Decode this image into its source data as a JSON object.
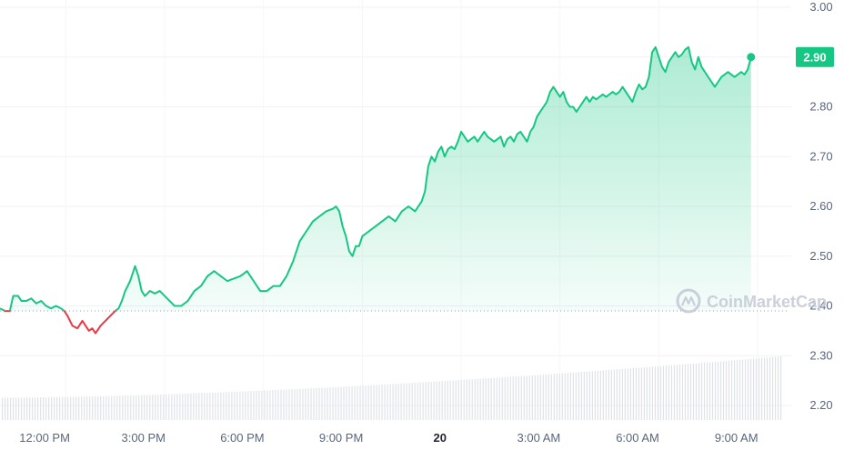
{
  "chart_data": {
    "type": "area",
    "title": "",
    "xlabel": "",
    "ylabel": "",
    "ylim": [
      2.2,
      3.0
    ],
    "y_ticks": [
      "3.00",
      "2.90",
      "2.80",
      "2.70",
      "2.60",
      "2.50",
      "2.40",
      "2.30",
      "2.20"
    ],
    "x_ticks": [
      {
        "label": "12:00 PM",
        "x": 0.5,
        "bold": false
      },
      {
        "label": "3:00 PM",
        "x": 3.5,
        "bold": false
      },
      {
        "label": "6:00 PM",
        "x": 6.5,
        "bold": false
      },
      {
        "label": "9:00 PM",
        "x": 9.5,
        "bold": false
      },
      {
        "label": "20",
        "x": 12.5,
        "bold": true
      },
      {
        "label": "3:00 AM",
        "x": 15.5,
        "bold": false
      },
      {
        "label": "6:00 AM",
        "x": 18.5,
        "bold": false
      },
      {
        "label": "9:00 AM",
        "x": 21.5,
        "bold": false
      }
    ],
    "x_range": [
      0,
      23.8
    ],
    "open_price": 2.39,
    "current_price_label": "2.90",
    "rising_color": "#16c784",
    "falling_color": "#ea3943",
    "grid": true,
    "series": [
      {
        "values": [
          [
            0.0,
            2.395
          ],
          [
            0.15,
            2.39
          ],
          [
            0.3,
            2.39
          ],
          [
            0.4,
            2.42
          ],
          [
            0.55,
            2.42
          ],
          [
            0.65,
            2.41
          ],
          [
            0.8,
            2.41
          ],
          [
            0.95,
            2.415
          ],
          [
            1.1,
            2.405
          ],
          [
            1.25,
            2.41
          ],
          [
            1.4,
            2.4
          ],
          [
            1.55,
            2.395
          ],
          [
            1.7,
            2.4
          ],
          [
            1.85,
            2.395
          ],
          [
            1.95,
            2.39
          ],
          [
            2.05,
            2.38
          ],
          [
            2.2,
            2.36
          ],
          [
            2.35,
            2.355
          ],
          [
            2.5,
            2.37
          ],
          [
            2.6,
            2.36
          ],
          [
            2.7,
            2.35
          ],
          [
            2.8,
            2.355
          ],
          [
            2.9,
            2.345
          ],
          [
            3.05,
            2.36
          ],
          [
            3.2,
            2.37
          ],
          [
            3.35,
            2.38
          ],
          [
            3.5,
            2.39
          ],
          [
            3.6,
            2.395
          ],
          [
            3.7,
            2.41
          ],
          [
            3.8,
            2.43
          ],
          [
            3.95,
            2.45
          ],
          [
            4.1,
            2.48
          ],
          [
            4.2,
            2.46
          ],
          [
            4.3,
            2.43
          ],
          [
            4.4,
            2.42
          ],
          [
            4.55,
            2.43
          ],
          [
            4.7,
            2.425
          ],
          [
            4.85,
            2.43
          ],
          [
            5.0,
            2.42
          ],
          [
            5.15,
            2.41
          ],
          [
            5.3,
            2.4
          ],
          [
            5.5,
            2.4
          ],
          [
            5.7,
            2.41
          ],
          [
            5.9,
            2.43
          ],
          [
            6.1,
            2.44
          ],
          [
            6.3,
            2.46
          ],
          [
            6.5,
            2.47
          ],
          [
            6.7,
            2.46
          ],
          [
            6.9,
            2.45
          ],
          [
            7.1,
            2.455
          ],
          [
            7.3,
            2.46
          ],
          [
            7.5,
            2.47
          ],
          [
            7.7,
            2.45
          ],
          [
            7.9,
            2.43
          ],
          [
            8.1,
            2.43
          ],
          [
            8.3,
            2.44
          ],
          [
            8.5,
            2.44
          ],
          [
            8.7,
            2.46
          ],
          [
            8.9,
            2.49
          ],
          [
            9.1,
            2.53
          ],
          [
            9.3,
            2.55
          ],
          [
            9.5,
            2.57
          ],
          [
            9.7,
            2.58
          ],
          [
            9.9,
            2.59
          ],
          [
            10.1,
            2.595
          ],
          [
            10.2,
            2.6
          ],
          [
            10.3,
            2.59
          ],
          [
            10.4,
            2.56
          ],
          [
            10.5,
            2.54
          ],
          [
            10.6,
            2.51
          ],
          [
            10.7,
            2.5
          ],
          [
            10.8,
            2.52
          ],
          [
            10.9,
            2.52
          ],
          [
            11.0,
            2.54
          ],
          [
            11.2,
            2.55
          ],
          [
            11.4,
            2.56
          ],
          [
            11.6,
            2.57
          ],
          [
            11.8,
            2.58
          ],
          [
            12.0,
            2.57
          ],
          [
            12.2,
            2.59
          ],
          [
            12.4,
            2.6
          ],
          [
            12.6,
            2.59
          ],
          [
            12.8,
            2.61
          ],
          [
            12.9,
            2.63
          ],
          [
            13.0,
            2.68
          ],
          [
            13.1,
            2.7
          ],
          [
            13.2,
            2.69
          ],
          [
            13.3,
            2.71
          ],
          [
            13.4,
            2.72
          ],
          [
            13.5,
            2.7
          ],
          [
            13.6,
            2.715
          ],
          [
            13.7,
            2.72
          ],
          [
            13.8,
            2.715
          ],
          [
            13.9,
            2.73
          ],
          [
            14.0,
            2.75
          ],
          [
            14.1,
            2.74
          ],
          [
            14.2,
            2.73
          ],
          [
            14.3,
            2.735
          ],
          [
            14.4,
            2.74
          ],
          [
            14.5,
            2.73
          ],
          [
            14.6,
            2.74
          ],
          [
            14.7,
            2.75
          ],
          [
            14.8,
            2.74
          ],
          [
            14.9,
            2.735
          ],
          [
            15.0,
            2.73
          ],
          [
            15.1,
            2.735
          ],
          [
            15.2,
            2.74
          ],
          [
            15.3,
            2.72
          ],
          [
            15.4,
            2.735
          ],
          [
            15.5,
            2.74
          ],
          [
            15.6,
            2.73
          ],
          [
            15.7,
            2.745
          ],
          [
            15.8,
            2.75
          ],
          [
            15.9,
            2.74
          ],
          [
            16.0,
            2.73
          ],
          [
            16.1,
            2.75
          ],
          [
            16.2,
            2.76
          ],
          [
            16.3,
            2.78
          ],
          [
            16.4,
            2.79
          ],
          [
            16.5,
            2.8
          ],
          [
            16.6,
            2.81
          ],
          [
            16.7,
            2.83
          ],
          [
            16.8,
            2.84
          ],
          [
            16.9,
            2.83
          ],
          [
            17.0,
            2.82
          ],
          [
            17.1,
            2.83
          ],
          [
            17.2,
            2.81
          ],
          [
            17.3,
            2.8
          ],
          [
            17.4,
            2.8
          ],
          [
            17.5,
            2.79
          ],
          [
            17.6,
            2.8
          ],
          [
            17.7,
            2.81
          ],
          [
            17.8,
            2.82
          ],
          [
            17.9,
            2.81
          ],
          [
            18.0,
            2.82
          ],
          [
            18.1,
            2.815
          ],
          [
            18.2,
            2.82
          ],
          [
            18.3,
            2.825
          ],
          [
            18.4,
            2.82
          ],
          [
            18.5,
            2.825
          ],
          [
            18.6,
            2.83
          ],
          [
            18.7,
            2.825
          ],
          [
            18.8,
            2.83
          ],
          [
            18.9,
            2.84
          ],
          [
            19.0,
            2.83
          ],
          [
            19.1,
            2.82
          ],
          [
            19.2,
            2.81
          ],
          [
            19.3,
            2.83
          ],
          [
            19.4,
            2.845
          ],
          [
            19.5,
            2.835
          ],
          [
            19.6,
            2.84
          ],
          [
            19.7,
            2.86
          ],
          [
            19.8,
            2.91
          ],
          [
            19.9,
            2.92
          ],
          [
            20.0,
            2.9
          ],
          [
            20.1,
            2.88
          ],
          [
            20.2,
            2.87
          ],
          [
            20.3,
            2.89
          ],
          [
            20.4,
            2.9
          ],
          [
            20.5,
            2.91
          ],
          [
            20.6,
            2.9
          ],
          [
            20.7,
            2.905
          ],
          [
            20.8,
            2.915
          ],
          [
            20.9,
            2.92
          ],
          [
            21.0,
            2.89
          ],
          [
            21.1,
            2.875
          ],
          [
            21.2,
            2.9
          ],
          [
            21.3,
            2.88
          ],
          [
            21.4,
            2.87
          ],
          [
            21.5,
            2.86
          ],
          [
            21.6,
            2.85
          ],
          [
            21.7,
            2.84
          ],
          [
            21.8,
            2.85
          ],
          [
            21.9,
            2.86
          ],
          [
            22.0,
            2.865
          ],
          [
            22.1,
            2.87
          ],
          [
            22.2,
            2.865
          ],
          [
            22.3,
            2.86
          ],
          [
            22.4,
            2.865
          ],
          [
            22.5,
            2.87
          ],
          [
            22.6,
            2.865
          ],
          [
            22.7,
            2.875
          ],
          [
            22.8,
            2.9
          ]
        ]
      }
    ],
    "volume": {
      "bar_count": 286,
      "relative_start": 0.35,
      "relative_end": 1.0
    }
  },
  "watermark": {
    "text": "CoinMarketCap",
    "icon": "coinmarketcap-logo-icon"
  }
}
